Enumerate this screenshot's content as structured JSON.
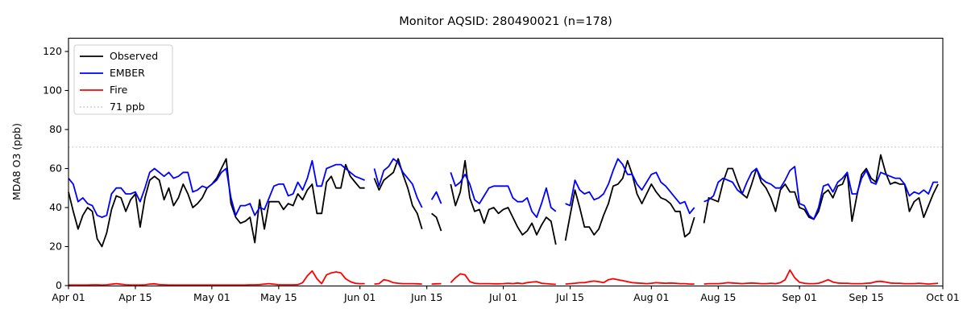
{
  "figure": {
    "background": "#ffffff"
  },
  "chart_data": {
    "type": "line",
    "title": "Monitor AQSID: 280490021 (n=178)",
    "xlabel": "",
    "ylabel": "MDA8 O3 (ppb)",
    "x_unit": "days since Apr 01",
    "xlim_days": [
      0,
      183
    ],
    "ylim": [
      0,
      126.8
    ],
    "grid": false,
    "legend_position": "upper left",
    "xticks": [
      {
        "day": 0,
        "label": "Apr 01"
      },
      {
        "day": 14,
        "label": "Apr 15"
      },
      {
        "day": 30,
        "label": "May 01"
      },
      {
        "day": 44,
        "label": "May 15"
      },
      {
        "day": 61,
        "label": "Jun 01"
      },
      {
        "day": 75,
        "label": "Jun 15"
      },
      {
        "day": 91,
        "label": "Jul 01"
      },
      {
        "day": 105,
        "label": "Jul 15"
      },
      {
        "day": 122,
        "label": "Aug 01"
      },
      {
        "day": 136,
        "label": "Aug 15"
      },
      {
        "day": 153,
        "label": "Sep 01"
      },
      {
        "day": 167,
        "label": "Sep 15"
      },
      {
        "day": 183,
        "label": "Oct 01"
      }
    ],
    "yticks": [
      0,
      20,
      40,
      60,
      80,
      100,
      120
    ],
    "threshold": {
      "value": 71,
      "label": "71 ppb",
      "color": "#cccccc",
      "style": "dotted"
    },
    "series": [
      {
        "name": "Observed",
        "color": "#000000",
        "values": [
          48,
          38,
          29,
          36,
          40,
          38,
          24,
          20,
          27,
          39,
          46,
          45,
          38,
          44,
          47,
          30,
          45,
          54,
          56,
          54,
          44,
          50,
          41,
          45,
          52,
          47,
          40,
          42,
          45,
          50,
          52,
          55,
          60,
          65,
          42,
          35,
          32,
          33,
          35,
          22,
          44,
          29,
          43,
          43,
          43,
          39,
          42,
          41,
          47,
          44,
          49,
          52,
          37,
          37,
          53,
          56,
          50,
          50,
          62,
          56,
          53,
          50,
          50,
          null,
          55,
          49,
          54,
          56,
          58,
          65,
          57,
          50,
          41,
          37,
          29,
          null,
          37,
          35,
          28,
          null,
          52,
          41,
          48,
          64,
          45,
          38,
          39,
          32,
          39,
          40,
          37,
          39,
          40,
          35,
          30,
          26,
          28,
          32,
          26,
          31,
          35,
          33,
          21,
          null,
          23,
          36,
          49,
          40,
          30,
          30,
          26,
          29,
          36,
          42,
          51,
          52,
          55,
          64,
          57,
          47,
          42,
          47,
          52,
          48,
          45,
          44,
          42,
          38,
          38,
          25,
          27,
          35,
          null,
          32,
          45,
          44,
          43,
          53,
          60,
          60,
          53,
          47,
          45,
          52,
          60,
          53,
          50,
          45,
          38,
          49,
          52,
          48,
          48,
          40,
          39,
          35,
          34,
          38,
          47,
          49,
          45,
          51,
          52,
          58,
          33,
          46,
          57,
          60,
          55,
          53,
          67,
          58,
          52,
          53,
          52,
          52,
          38,
          43,
          45,
          35,
          41,
          47,
          52
        ]
      },
      {
        "name": "EMBER",
        "color": "#0000ff",
        "values": [
          55,
          52,
          43,
          45,
          42,
          41,
          36,
          35,
          36,
          47,
          50,
          50,
          47,
          47,
          48,
          43,
          50,
          58,
          60,
          58,
          56,
          58,
          55,
          56,
          58,
          58,
          48,
          49,
          51,
          50,
          52,
          54,
          58,
          60,
          45,
          36,
          41,
          41,
          42,
          36,
          40,
          39,
          45,
          51,
          52,
          52,
          46,
          47,
          53,
          49,
          55,
          64,
          51,
          51,
          60,
          61,
          62,
          62,
          60,
          58,
          56,
          55,
          54,
          null,
          60,
          51,
          59,
          61,
          65,
          63,
          58,
          55,
          52,
          45,
          40,
          null,
          44,
          48,
          42,
          null,
          58,
          51,
          53,
          57,
          52,
          44,
          42,
          46,
          50,
          51,
          51,
          51,
          51,
          45,
          43,
          43,
          45,
          38,
          35,
          42,
          50,
          40,
          38,
          null,
          42,
          41,
          54,
          49,
          47,
          48,
          44,
          45,
          47,
          52,
          59,
          65,
          62,
          57,
          57,
          52,
          49,
          53,
          57,
          58,
          53,
          51,
          48,
          45,
          42,
          43,
          37,
          40,
          null,
          43,
          44,
          46,
          53,
          55,
          54,
          53,
          49,
          47,
          53,
          58,
          60,
          55,
          53,
          52,
          50,
          50,
          54,
          59,
          61,
          42,
          41,
          36,
          34,
          40,
          51,
          52,
          48,
          53,
          55,
          58,
          47,
          47,
          55,
          59,
          53,
          52,
          58,
          57,
          56,
          55,
          55,
          52,
          46,
          48,
          47,
          49,
          47,
          53,
          53
        ]
      },
      {
        "name": "Fire",
        "color": "#ff0000",
        "values": [
          0.3,
          0.3,
          0.3,
          0.3,
          0.3,
          0.4,
          0.4,
          0.3,
          0.4,
          0.7,
          1.0,
          0.7,
          0.4,
          0.3,
          0.3,
          0.3,
          0.4,
          0.8,
          0.9,
          0.5,
          0.4,
          0.3,
          0.3,
          0.3,
          0.3,
          0.3,
          0.3,
          0.3,
          0.3,
          0.3,
          0.3,
          0.3,
          0.3,
          0.3,
          0.3,
          0.3,
          0.3,
          0.3,
          0.4,
          0.4,
          0.5,
          0.8,
          1.0,
          0.7,
          0.4,
          0.4,
          0.4,
          0.4,
          0.5,
          1.5,
          5.0,
          7.5,
          3.5,
          1.0,
          5.5,
          6.5,
          7.0,
          6.5,
          3.5,
          2.0,
          1.2,
          1.0,
          1.0,
          null,
          0.8,
          1.0,
          3.0,
          2.5,
          1.5,
          1.2,
          1.0,
          1.0,
          1.0,
          0.9,
          0.8,
          null,
          0.8,
          0.9,
          1.0,
          null,
          1.5,
          4.0,
          6.0,
          5.5,
          2.0,
          1.2,
          1.0,
          1.0,
          1.0,
          0.9,
          0.9,
          1.0,
          1.2,
          1.0,
          1.3,
          1.0,
          1.5,
          1.8,
          2.0,
          1.2,
          1.0,
          0.8,
          0.6,
          null,
          0.8,
          1.0,
          1.2,
          1.5,
          1.5,
          2.0,
          2.3,
          2.0,
          1.5,
          3.0,
          3.5,
          3.0,
          2.5,
          2.0,
          1.5,
          1.3,
          1.2,
          1.0,
          1.2,
          1.5,
          1.3,
          1.2,
          1.3,
          1.2,
          1.0,
          1.0,
          0.8,
          0.8,
          null,
          0.8,
          1.0,
          1.0,
          1.0,
          1.2,
          1.5,
          1.3,
          1.2,
          1.0,
          1.2,
          1.3,
          1.2,
          1.0,
          1.0,
          1.2,
          1.0,
          1.5,
          3.0,
          8.0,
          4.0,
          1.7,
          1.2,
          1.0,
          1.0,
          1.2,
          2.0,
          3.0,
          1.8,
          1.3,
          1.2,
          1.2,
          1.0,
          1.0,
          1.0,
          1.2,
          1.3,
          2.0,
          2.2,
          1.8,
          1.3,
          1.2,
          1.2,
          1.0,
          1.0,
          1.0,
          1.2,
          1.0,
          0.8,
          1.0,
          1.2
        ]
      }
    ]
  }
}
